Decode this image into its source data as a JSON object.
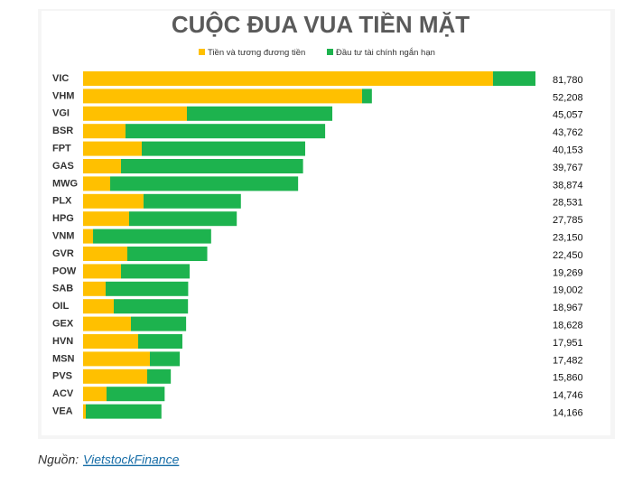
{
  "chart_data": {
    "type": "stacked-bar-horizontal",
    "title": "CUỘC ĐUA VUA TIỀN MẶT",
    "categories": [
      "VIC",
      "VHM",
      "VGI",
      "BSR",
      "FPT",
      "GAS",
      "MWG",
      "PLX",
      "HPG",
      "VNM",
      "GVR",
      "POW",
      "SAB",
      "OIL",
      "GEX",
      "HVN",
      "MSN",
      "PVS",
      "ACV",
      "VEA"
    ],
    "series": [
      {
        "name": "Tiền và tương đương tiền",
        "color": "#ffc000",
        "values": [
          74100,
          50430,
          18770,
          7670,
          10610,
          6850,
          4900,
          10930,
          8320,
          1800,
          8000,
          6850,
          4080,
          5550,
          8650,
          9960,
          12080,
          11590,
          4240,
          490
        ]
      },
      {
        "name": "Đầu tư tài chính ngắn hạn",
        "color": "#1db34e",
        "values": [
          7680,
          1778,
          26287,
          36092,
          29543,
          32917,
          33974,
          17601,
          19465,
          21350,
          14450,
          12419,
          14922,
          13417,
          9978,
          7991,
          5402,
          4270,
          10506,
          13676
        ]
      }
    ],
    "total_labels": [
      "81,780",
      "52,208",
      "45,057",
      "43,762",
      "40,153",
      "39,767",
      "38,874",
      "28,531",
      "27,785",
      "23,150",
      "22,450",
      "19,269",
      "19,002",
      "18,967",
      "18,628",
      "17,951",
      "17,482",
      "15,860",
      "14,746",
      "14,166"
    ]
  },
  "source": {
    "prefix": "Nguồn:",
    "link": "VietstockFinance"
  }
}
